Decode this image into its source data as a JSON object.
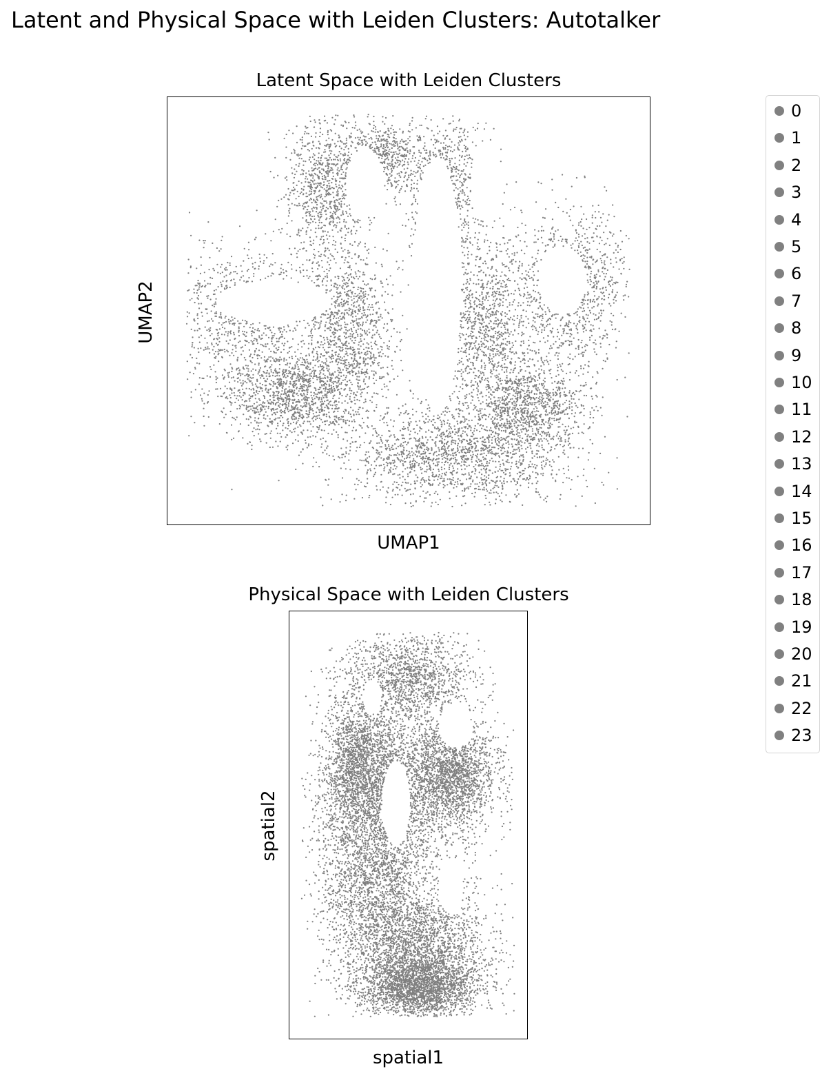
{
  "figure": {
    "title": "Latent and Physical Space with Leiden Clusters: Autotalker"
  },
  "colors": {
    "point": "#808080",
    "axes": "#000000"
  },
  "chart_data": [
    {
      "type": "scatter",
      "title": "Latent Space with Leiden Clusters",
      "xlabel": "UMAP1",
      "ylabel": "UMAP2",
      "ticks": "none",
      "grid": false,
      "point_color": "#808080",
      "xlim": [
        0,
        1
      ],
      "ylim": [
        0,
        1
      ],
      "description_shape": "cloverleaf",
      "density_regions": [
        {
          "cx": 0.17,
          "cy": 0.48,
          "rx": 0.14,
          "ry": 0.14,
          "w": 1.0
        },
        {
          "cx": 0.26,
          "cy": 0.3,
          "rx": 0.12,
          "ry": 0.09,
          "w": 1.2
        },
        {
          "cx": 0.38,
          "cy": 0.45,
          "rx": 0.08,
          "ry": 0.16,
          "w": 1.0
        },
        {
          "cx": 0.33,
          "cy": 0.78,
          "rx": 0.07,
          "ry": 0.14,
          "w": 0.8
        },
        {
          "cx": 0.44,
          "cy": 0.86,
          "rx": 0.07,
          "ry": 0.07,
          "w": 0.6
        },
        {
          "cx": 0.58,
          "cy": 0.78,
          "rx": 0.07,
          "ry": 0.14,
          "w": 0.9
        },
        {
          "cx": 0.66,
          "cy": 0.47,
          "rx": 0.08,
          "ry": 0.16,
          "w": 1.0
        },
        {
          "cx": 0.84,
          "cy": 0.55,
          "rx": 0.1,
          "ry": 0.16,
          "w": 1.0
        },
        {
          "cx": 0.6,
          "cy": 0.16,
          "rx": 0.2,
          "ry": 0.1,
          "w": 1.6
        },
        {
          "cx": 0.75,
          "cy": 0.28,
          "rx": 0.1,
          "ry": 0.08,
          "w": 0.9
        }
      ],
      "holes": [
        {
          "cx": 0.56,
          "cy": 0.56,
          "rx": 0.05,
          "ry": 0.3
        },
        {
          "cx": 0.22,
          "cy": 0.52,
          "rx": 0.12,
          "ry": 0.05
        },
        {
          "cx": 0.82,
          "cy": 0.57,
          "rx": 0.05,
          "ry": 0.08
        },
        {
          "cx": 0.66,
          "cy": 0.8,
          "rx": 0.03,
          "ry": 0.09
        },
        {
          "cx": 0.41,
          "cy": 0.8,
          "rx": 0.04,
          "ry": 0.08
        }
      ],
      "n_points": 9000
    },
    {
      "type": "scatter",
      "title": "Physical Space with Leiden Clusters",
      "xlabel": "spatial1",
      "ylabel": "spatial2",
      "ticks": "none",
      "grid": false,
      "point_color": "#808080",
      "xlim": [
        0,
        1
      ],
      "ylim": [
        0,
        1
      ],
      "description_shape": "tissue-section",
      "density_regions": [
        {
          "cx": 0.5,
          "cy": 0.6,
          "rx": 0.3,
          "ry": 0.14,
          "w": 1.4
        },
        {
          "cx": 0.35,
          "cy": 0.4,
          "rx": 0.2,
          "ry": 0.22,
          "w": 1.6
        },
        {
          "cx": 0.55,
          "cy": 0.2,
          "rx": 0.25,
          "ry": 0.14,
          "w": 1.6
        },
        {
          "cx": 0.7,
          "cy": 0.62,
          "rx": 0.14,
          "ry": 0.1,
          "w": 0.9
        },
        {
          "cx": 0.5,
          "cy": 0.85,
          "rx": 0.22,
          "ry": 0.08,
          "w": 0.8
        },
        {
          "cx": 0.3,
          "cy": 0.65,
          "rx": 0.12,
          "ry": 0.14,
          "w": 1.0
        },
        {
          "cx": 0.55,
          "cy": 0.12,
          "rx": 0.2,
          "ry": 0.06,
          "w": 1.2
        }
      ],
      "holes": [
        {
          "cx": 0.45,
          "cy": 0.55,
          "rx": 0.06,
          "ry": 0.1
        },
        {
          "cx": 0.7,
          "cy": 0.73,
          "rx": 0.07,
          "ry": 0.05
        },
        {
          "cx": 0.35,
          "cy": 0.8,
          "rx": 0.04,
          "ry": 0.04
        },
        {
          "cx": 0.68,
          "cy": 0.35,
          "rx": 0.05,
          "ry": 0.06
        }
      ],
      "n_points": 12000
    }
  ],
  "legend": {
    "placement": "right",
    "dot_color": "#808080",
    "entries": [
      "0",
      "1",
      "2",
      "3",
      "4",
      "5",
      "6",
      "7",
      "8",
      "9",
      "10",
      "11",
      "12",
      "13",
      "14",
      "15",
      "16",
      "17",
      "18",
      "19",
      "20",
      "21",
      "22",
      "23"
    ]
  }
}
